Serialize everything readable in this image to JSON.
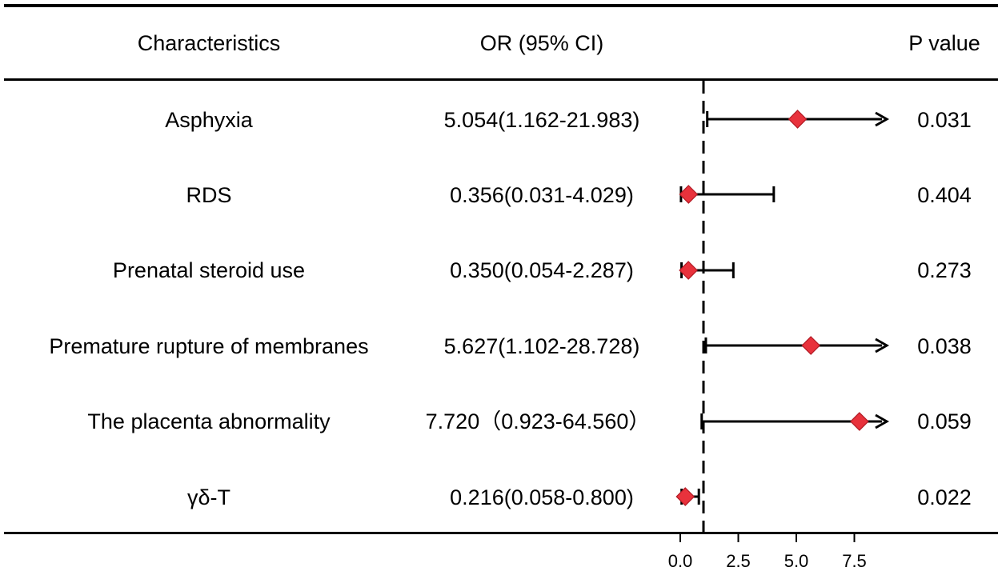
{
  "headers": {
    "characteristics": "Characteristics",
    "or_ci": "OR (95% CI)",
    "p_value": "P value"
  },
  "rows": [
    {
      "label": "Asphyxia",
      "or_text": "5.054(1.162-21.983)",
      "p": "0.031"
    },
    {
      "label": "RDS",
      "or_text": "0.356(0.031-4.029)",
      "p": "0.404"
    },
    {
      "label": "Prenatal steroid use",
      "or_text": "0.350(0.054-2.287)",
      "p": "0.273"
    },
    {
      "label": "Premature rupture of membranes",
      "or_text": "5.627(1.102-28.728)",
      "p": "0.038"
    },
    {
      "label": "The placenta abnormality",
      "or_text": "7.720（0.923-64.560）",
      "p": "0.059"
    },
    {
      "label": "γδ-T",
      "or_text": "0.216(0.058-0.800)",
      "p": "0.022"
    }
  ],
  "chart_data": {
    "type": "forest",
    "xlim": [
      0,
      9
    ],
    "x_ticks": [
      0.0,
      2.5,
      5.0,
      7.5
    ],
    "x_tick_labels": [
      "0.0",
      "2.5",
      "5.0",
      "7.5"
    ],
    "reference_line": 1,
    "series": [
      {
        "name": "Asphyxia",
        "or": 5.054,
        "lower": 1.162,
        "upper": 21.983,
        "clipped_upper": true
      },
      {
        "name": "RDS",
        "or": 0.356,
        "lower": 0.031,
        "upper": 4.029,
        "clipped_upper": false
      },
      {
        "name": "Prenatal steroid use",
        "or": 0.35,
        "lower": 0.054,
        "upper": 2.287,
        "clipped_upper": false
      },
      {
        "name": "Premature rupture of membranes",
        "or": 5.627,
        "lower": 1.102,
        "upper": 28.728,
        "clipped_upper": true
      },
      {
        "name": "The placenta abnormality",
        "or": 7.72,
        "lower": 0.923,
        "upper": 64.56,
        "clipped_upper": true
      },
      {
        "name": "γδ-T",
        "or": 0.216,
        "lower": 0.058,
        "upper": 0.8,
        "clipped_upper": false
      }
    ],
    "marker_color": "#e8323c",
    "marker_edge": "#b01822"
  }
}
